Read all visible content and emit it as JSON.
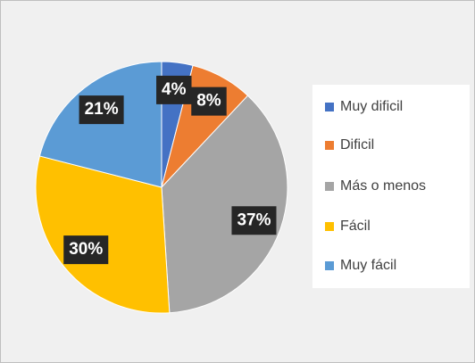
{
  "chart_data": {
    "type": "pie",
    "categories": [
      "Muy dificil",
      "Dificil",
      "Más o menos",
      "Fácil",
      "Muy fácil"
    ],
    "values": [
      4,
      8,
      37,
      30,
      21
    ],
    "value_labels": [
      "4%",
      "8%",
      "37%",
      "30%",
      "21%"
    ],
    "colors": [
      "#4472c4",
      "#ed7d31",
      "#a5a5a5",
      "#ffc000",
      "#5b9bd5"
    ],
    "legend": "right"
  }
}
